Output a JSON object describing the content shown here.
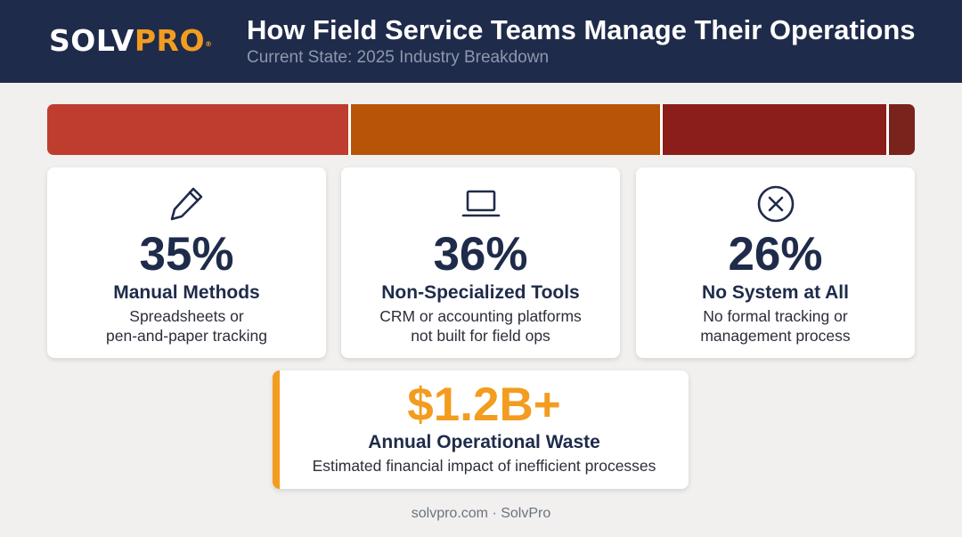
{
  "header": {
    "logo_main": "SOLV",
    "logo_accent": "PRO",
    "logo_mark": "®",
    "title": "How Field Service Teams Manage Their Operations",
    "subtitle": "Current State: 2025 Industry Breakdown"
  },
  "chart_data": {
    "type": "bar",
    "orientation": "stacked-horizontal",
    "categories": [
      "Manual Methods",
      "Non-Specialized Tools",
      "No System at All",
      ""
    ],
    "values": [
      35,
      36,
      26,
      3
    ],
    "unit": "%",
    "colors": [
      "#bf3d2e",
      "#b85408",
      "#8b1e1a",
      "#7a231d"
    ],
    "grid": false,
    "legend": "none"
  },
  "cards": [
    {
      "icon": "pencil-icon",
      "percent": "35%",
      "label": "Manual Methods",
      "description": "Spreadsheets or\npen-and-paper tracking"
    },
    {
      "icon": "laptop-icon",
      "percent": "36%",
      "label": "Non-Specialized Tools",
      "description": "CRM or accounting platforms\nnot built for field ops"
    },
    {
      "icon": "x-circle-icon",
      "percent": "26%",
      "label": "No System at All",
      "description": "No formal tracking or\nmanagement process"
    }
  ],
  "waste": {
    "value": "$1.2B+",
    "label": "Annual Operational Waste",
    "description": "Estimated financial impact of inefficient processes",
    "accent_color": "#f39c1f"
  },
  "footer": {
    "text": "solvpro.com · SolvPro"
  }
}
